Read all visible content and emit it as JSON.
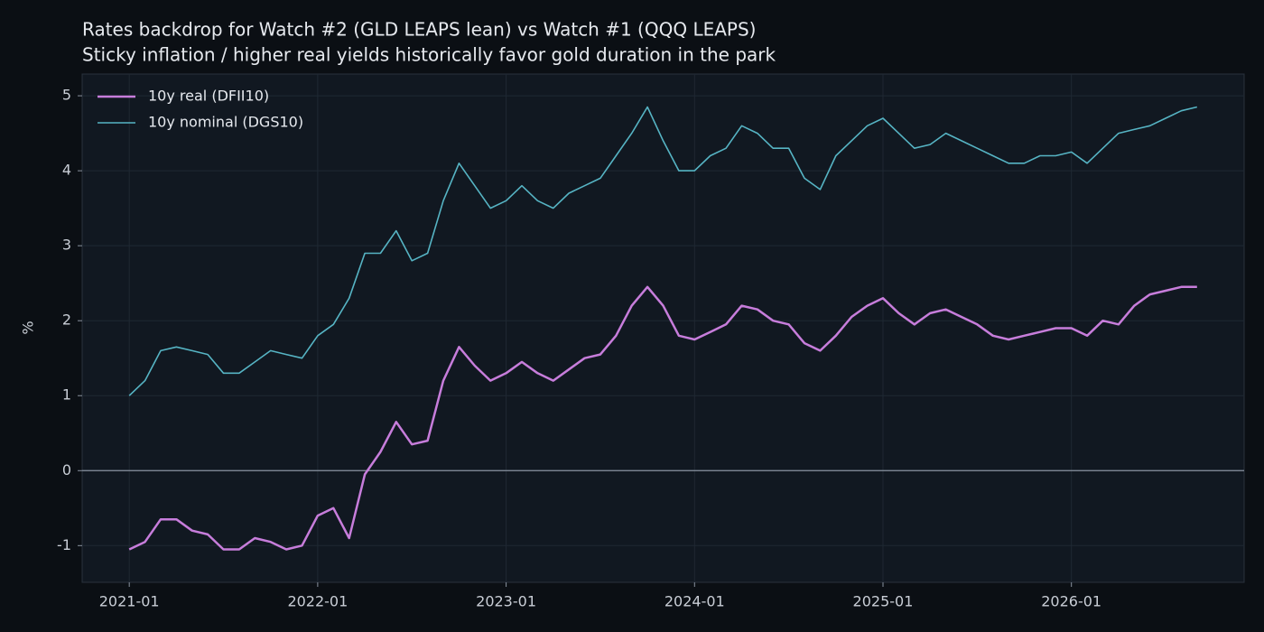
{
  "chart_data": {
    "type": "line",
    "title": "Rates backdrop for Watch #2 (GLD LEAPS lean) vs Watch #1 (QQQ LEAPS)",
    "subtitle": "Sticky inflation / higher real yields historically favor gold duration in the park",
    "y_label": "%",
    "x": [
      "2021-01",
      "2021-02",
      "2021-03",
      "2021-04",
      "2021-05",
      "2021-06",
      "2021-07",
      "2021-08",
      "2021-09",
      "2021-10",
      "2021-11",
      "2021-12",
      "2022-01",
      "2022-02",
      "2022-03",
      "2022-04",
      "2022-05",
      "2022-06",
      "2022-07",
      "2022-08",
      "2022-09",
      "2022-10",
      "2022-11",
      "2022-12",
      "2023-01",
      "2023-02",
      "2023-03",
      "2023-04",
      "2023-05",
      "2023-06",
      "2023-07",
      "2023-08",
      "2023-09",
      "2023-10",
      "2023-11",
      "2023-12",
      "2024-01",
      "2024-02",
      "2024-03",
      "2024-04",
      "2024-05",
      "2024-06",
      "2024-07",
      "2024-08",
      "2024-09",
      "2024-10",
      "2024-11",
      "2024-12",
      "2025-01",
      "2025-02",
      "2025-03",
      "2025-04",
      "2025-05",
      "2025-06",
      "2025-07",
      "2025-08",
      "2025-09",
      "2025-10",
      "2025-11",
      "2025-12",
      "2026-01",
      "2026-02",
      "2026-03",
      "2026-04",
      "2026-05",
      "2026-06",
      "2026-07",
      "2026-08",
      "2026-09"
    ],
    "series": [
      {
        "name": "10y real (DFII10)",
        "color": "#c77ddb",
        "line_width": 2.5,
        "values": [
          -1.05,
          -0.95,
          -0.65,
          -0.65,
          -0.8,
          -0.85,
          -1.05,
          -1.05,
          -0.9,
          -0.95,
          -1.05,
          -1.0,
          -0.6,
          -0.5,
          -0.9,
          -0.05,
          0.25,
          0.65,
          0.35,
          0.4,
          1.2,
          1.65,
          1.4,
          1.2,
          1.3,
          1.45,
          1.3,
          1.2,
          1.35,
          1.5,
          1.55,
          1.8,
          2.2,
          2.45,
          2.2,
          1.8,
          1.75,
          1.85,
          1.95,
          2.2,
          2.15,
          2.0,
          1.95,
          1.7,
          1.6,
          1.8,
          2.05,
          2.2,
          2.3,
          2.1,
          1.95,
          2.1,
          2.15,
          2.05,
          1.95,
          1.8,
          1.75,
          1.8,
          1.85,
          1.9,
          1.9,
          1.8,
          2.0,
          1.95,
          2.2,
          2.35,
          2.4,
          2.45,
          2.45
        ]
      },
      {
        "name": "10y nominal (DGS10)",
        "color": "#56b4c4",
        "line_width": 1.6,
        "values": [
          1.0,
          1.2,
          1.6,
          1.65,
          1.6,
          1.55,
          1.3,
          1.3,
          1.45,
          1.6,
          1.55,
          1.5,
          1.8,
          1.95,
          2.3,
          2.9,
          2.9,
          3.2,
          2.8,
          2.9,
          3.6,
          4.1,
          3.8,
          3.5,
          3.6,
          3.8,
          3.6,
          3.5,
          3.7,
          3.8,
          3.9,
          4.2,
          4.5,
          4.85,
          4.4,
          4.0,
          4.0,
          4.2,
          4.3,
          4.6,
          4.5,
          4.3,
          4.3,
          3.9,
          3.75,
          4.2,
          4.4,
          4.6,
          4.7,
          4.5,
          4.3,
          4.35,
          4.5,
          4.4,
          4.3,
          4.2,
          4.1,
          4.1,
          4.2,
          4.2,
          4.25,
          4.1,
          4.3,
          4.5,
          4.55,
          4.6,
          4.7,
          4.8,
          4.85
        ]
      }
    ],
    "xlim": [
      "2020-10",
      "2026-12"
    ],
    "xticks": [
      "2021-01",
      "2022-01",
      "2023-01",
      "2024-01",
      "2025-01",
      "2026-01"
    ],
    "ylim": [
      -1.49,
      5.29
    ],
    "yticks": [
      -1,
      0,
      1,
      2,
      3,
      4,
      5
    ],
    "hline": 0,
    "grid": true,
    "legend": "upper-left"
  }
}
